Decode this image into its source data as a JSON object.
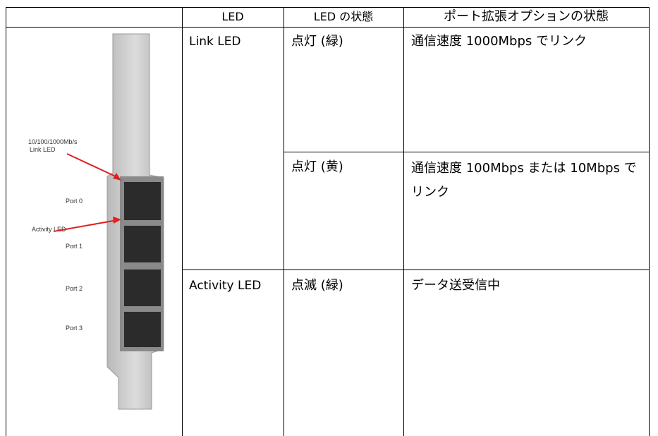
{
  "table": {
    "header": [
      "LED",
      "LED の状態",
      "ポート拡張オプションの状態"
    ],
    "groups": [
      {
        "led": "Link LED",
        "states": [
          {
            "state": "点灯 (緑)",
            "description": "通信速度 1000Mbps でリンク"
          },
          {
            "state": "点灯 (黄)",
            "description": "通信速度 100Mbps または 10Mbps でリンク"
          }
        ]
      },
      {
        "led": "Activity LED",
        "states": [
          {
            "state": "点滅 (緑)",
            "description": "データ送受信中"
          }
        ]
      }
    ]
  },
  "figure": {
    "link_led_label": [
      "10/100/1000Mb/s",
      "Link LED"
    ],
    "activity_led_label": "Activity LED",
    "ports": [
      "Port 0",
      "Port 1",
      "Port 2",
      "Port 3"
    ]
  }
}
